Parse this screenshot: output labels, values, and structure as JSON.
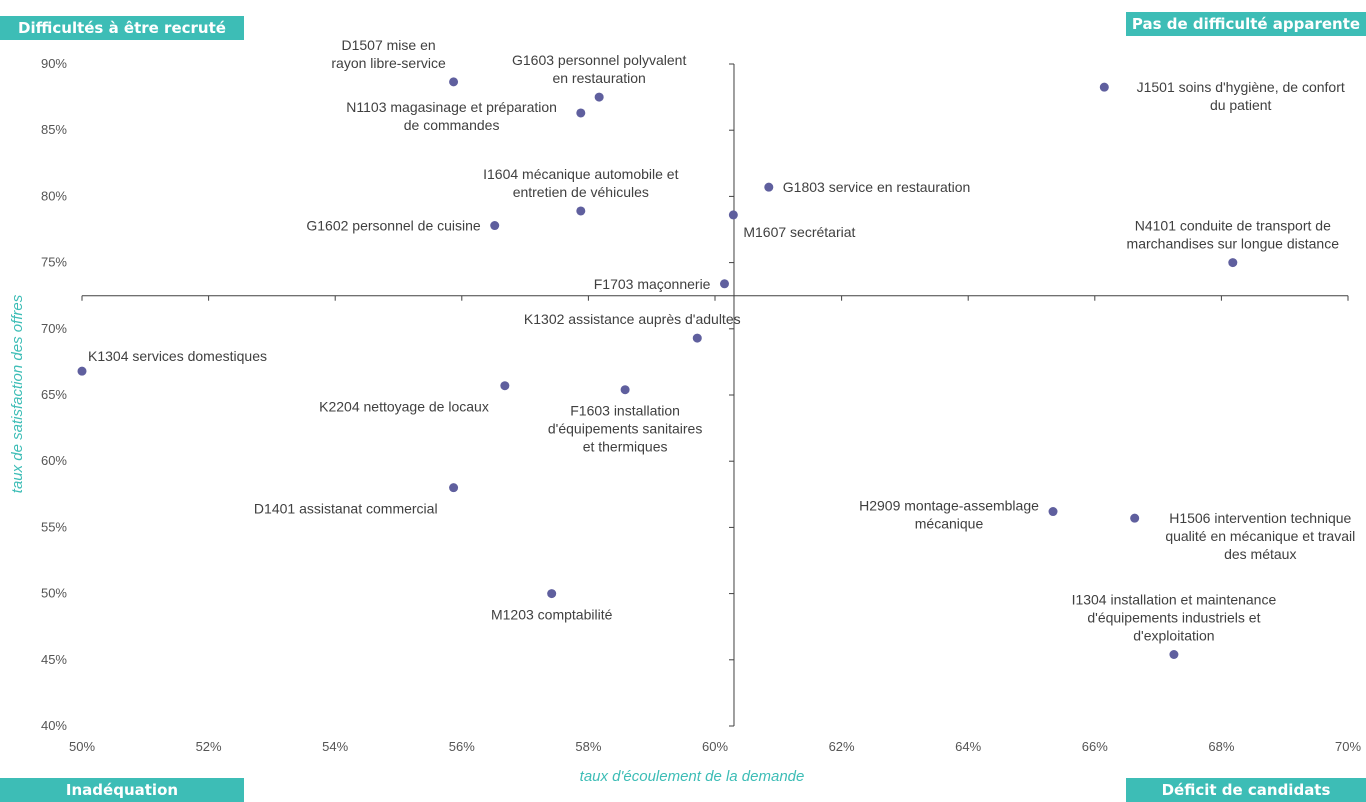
{
  "quadrants": {
    "top_left": "Difficultés à être recruté",
    "top_right": "Pas de difficulté apparente",
    "bottom_left": "Inadéquation",
    "bottom_right": "Déficit de candidats"
  },
  "colors": {
    "accent": "#3dbdb6",
    "point": "#5f5f9e",
    "axis": "#404040",
    "text": "#404040"
  },
  "chart_data": {
    "type": "scatter",
    "title": "",
    "xlabel": "taux d'écoulement de la demande",
    "ylabel": "taux de satisfaction des offres",
    "xlim": [
      0.5,
      0.7
    ],
    "ylim": [
      0.4,
      0.9
    ],
    "x_ticks": [
      {
        "value": 0.5,
        "label": "50%"
      },
      {
        "value": 0.52,
        "label": "52%"
      },
      {
        "value": 0.54,
        "label": "54%"
      },
      {
        "value": 0.56,
        "label": "56%"
      },
      {
        "value": 0.58,
        "label": "58%"
      },
      {
        "value": 0.6,
        "label": "60%"
      },
      {
        "value": 0.62,
        "label": "62%"
      },
      {
        "value": 0.64,
        "label": "64%"
      },
      {
        "value": 0.66,
        "label": "66%"
      },
      {
        "value": 0.68,
        "label": "68%"
      },
      {
        "value": 0.7,
        "label": "70%"
      }
    ],
    "y_ticks": [
      {
        "value": 0.4,
        "label": "40%"
      },
      {
        "value": 0.45,
        "label": "45%"
      },
      {
        "value": 0.5,
        "label": "50%"
      },
      {
        "value": 0.55,
        "label": "55%"
      },
      {
        "value": 0.6,
        "label": "60%"
      },
      {
        "value": 0.65,
        "label": "65%"
      },
      {
        "value": 0.7,
        "label": "70%"
      },
      {
        "value": 0.75,
        "label": "75%"
      },
      {
        "value": 0.8,
        "label": "80%"
      },
      {
        "value": 0.85,
        "label": "85%"
      },
      {
        "value": 0.9,
        "label": "90%"
      }
    ],
    "crosshair": {
      "x": 0.603,
      "y": 0.725
    },
    "grid": false,
    "points": [
      {
        "name": "D1507",
        "x": 0.5587,
        "y": 0.8865,
        "label": [
          "D1507  mise en",
          "rayon libre-service"
        ],
        "pos": "above-left"
      },
      {
        "name": "G1603",
        "x": 0.5817,
        "y": 0.875,
        "label": [
          "G1603  personnel polyvalent",
          "en restauration"
        ],
        "pos": "above"
      },
      {
        "name": "N1103",
        "x": 0.5788,
        "y": 0.863,
        "label": [
          "N1103  magasinage et préparation",
          "de commandes"
        ],
        "pos": "left"
      },
      {
        "name": "J1501",
        "x": 0.6615,
        "y": 0.8825,
        "label": [
          "J1501  soins d'hygiène, de confort",
          "du patient"
        ],
        "pos": "right"
      },
      {
        "name": "I1604",
        "x": 0.5788,
        "y": 0.789,
        "label": [
          "I1604  mécanique automobile et",
          "entretien de véhicules"
        ],
        "pos": "above"
      },
      {
        "name": "G1803",
        "x": 0.6085,
        "y": 0.807,
        "label": [
          "G1803  service en restauration"
        ],
        "pos": "right"
      },
      {
        "name": "M1607",
        "x": 0.6029,
        "y": 0.786,
        "label": [
          "M1607  secrétariat"
        ],
        "pos": "below-right"
      },
      {
        "name": "G1602",
        "x": 0.5652,
        "y": 0.778,
        "label": [
          "G1602  personnel de cuisine"
        ],
        "pos": "left"
      },
      {
        "name": "N4101",
        "x": 0.6818,
        "y": 0.75,
        "label": [
          "N4101  conduite de transport de",
          "marchandises sur longue distance"
        ],
        "pos": "above"
      },
      {
        "name": "F1703",
        "x": 0.6015,
        "y": 0.734,
        "label": [
          "F1703  maçonnerie"
        ],
        "pos": "left"
      },
      {
        "name": "K1302",
        "x": 0.5972,
        "y": 0.693,
        "label": [
          "K1302  assistance auprès d'adultes"
        ],
        "pos": "above-left"
      },
      {
        "name": "K1304",
        "x": 0.5,
        "y": 0.668,
        "label": [
          "K1304  services domestiques"
        ],
        "pos": "above-right"
      },
      {
        "name": "K2204",
        "x": 0.5668,
        "y": 0.657,
        "label": [
          "K2204  nettoyage de locaux"
        ],
        "pos": "below-left"
      },
      {
        "name": "F1603",
        "x": 0.5858,
        "y": 0.654,
        "label": [
          "F1603  installation",
          "d'équipements  sanitaires",
          "et thermiques"
        ],
        "pos": "below"
      },
      {
        "name": "D1401",
        "x": 0.5587,
        "y": 0.58,
        "label": [
          "D1401  assistanat commercial"
        ],
        "pos": "below-left"
      },
      {
        "name": "H2909",
        "x": 0.6534,
        "y": 0.562,
        "label": [
          "H2909  montage-assemblage",
          "mécanique"
        ],
        "pos": "left"
      },
      {
        "name": "H1506",
        "x": 0.6663,
        "y": 0.557,
        "label": [
          "H1506  intervention  technique",
          "qualité en mécanique et travail",
          "des métaux"
        ],
        "pos": "right"
      },
      {
        "name": "M1203",
        "x": 0.5742,
        "y": 0.5,
        "label": [
          "M1203  comptabilité"
        ],
        "pos": "below"
      },
      {
        "name": "I1304",
        "x": 0.6725,
        "y": 0.454,
        "label": [
          "I1304  installation et maintenance",
          "d'équipements  industriels et",
          "d'exploitation"
        ],
        "pos": "above"
      }
    ]
  }
}
